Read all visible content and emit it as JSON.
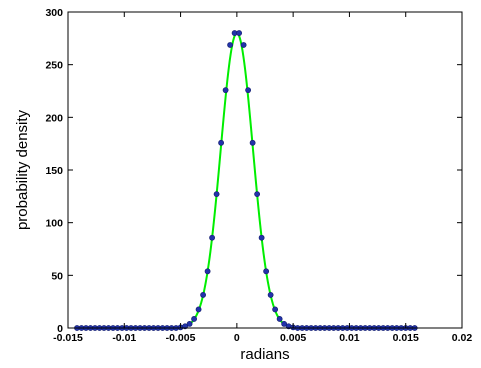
{
  "chart_data": {
    "type": "line",
    "xlabel": "radians",
    "ylabel": "probability density",
    "xlim": [
      -0.015,
      0.02
    ],
    "ylim": [
      0,
      300
    ],
    "xticks": [
      -0.015,
      -0.01,
      -0.005,
      0,
      0.005,
      0.01,
      0.015,
      0.02
    ],
    "xtick_labels": [
      "-0.015",
      "-0.01",
      "-0.005",
      "0",
      "0.005",
      "0.01",
      "0.015",
      "0.02"
    ],
    "yticks": [
      0,
      50,
      100,
      150,
      200,
      250,
      300
    ],
    "ytick_labels": [
      "0",
      "50",
      "100",
      "150",
      "200",
      "250",
      "300"
    ],
    "grid": false,
    "legend": "none",
    "series": [
      {
        "style": "line",
        "color": "#00ee00",
        "gaussian": {
          "peak": 280,
          "mean": 0.0,
          "sigma": 0.00143
        },
        "x_range": [
          -0.0142,
          0.0158
        ]
      },
      {
        "style": "markers",
        "color": "#2233aa",
        "x": [
          -0.0142,
          -0.0138,
          -0.0134,
          -0.013,
          -0.0126,
          -0.0122,
          -0.0118,
          -0.0114,
          -0.011,
          -0.0106,
          -0.0102,
          -0.0098,
          -0.0094,
          -0.009,
          -0.0086,
          -0.0082,
          -0.0078,
          -0.0074,
          -0.007,
          -0.0066,
          -0.0062,
          -0.0058,
          -0.0054,
          -0.005,
          -0.0046,
          -0.0042,
          -0.0038,
          -0.0034,
          -0.003,
          -0.0026,
          -0.0022,
          -0.0018,
          -0.0014,
          -0.001,
          -0.0006,
          -0.0002,
          0.0002,
          0.0006,
          0.001,
          0.0014,
          0.0018,
          0.0022,
          0.0026,
          0.003,
          0.0034,
          0.0038,
          0.0042,
          0.0046,
          0.005,
          0.0054,
          0.0058,
          0.0062,
          0.0066,
          0.007,
          0.0074,
          0.0078,
          0.0082,
          0.0086,
          0.009,
          0.0094,
          0.0098,
          0.0102,
          0.0106,
          0.011,
          0.0114,
          0.0118,
          0.0122,
          0.0126,
          0.013,
          0.0134,
          0.0138,
          0.0142,
          0.0146,
          0.015,
          0.0154,
          0.0158
        ],
        "y": [
          0,
          0,
          0,
          0,
          0,
          0,
          0,
          0,
          0,
          0,
          0,
          0,
          0,
          0,
          0,
          0,
          0,
          0,
          0,
          0,
          0,
          0,
          0,
          0.6,
          1.6,
          3.9,
          8.6,
          17.6,
          31.4,
          53.8,
          85.7,
          127.1,
          175.8,
          225.8,
          268.7,
          280,
          280,
          268.7,
          225.8,
          175.8,
          127.1,
          85.7,
          53.8,
          31.4,
          17.6,
          8.6,
          3.9,
          1.6,
          0.6,
          0,
          0,
          0,
          0,
          0,
          0,
          0,
          0,
          0,
          0,
          0,
          0,
          0,
          0,
          0,
          0,
          0,
          0,
          0,
          0,
          0,
          0,
          0,
          0,
          0,
          0,
          0
        ]
      }
    ]
  }
}
